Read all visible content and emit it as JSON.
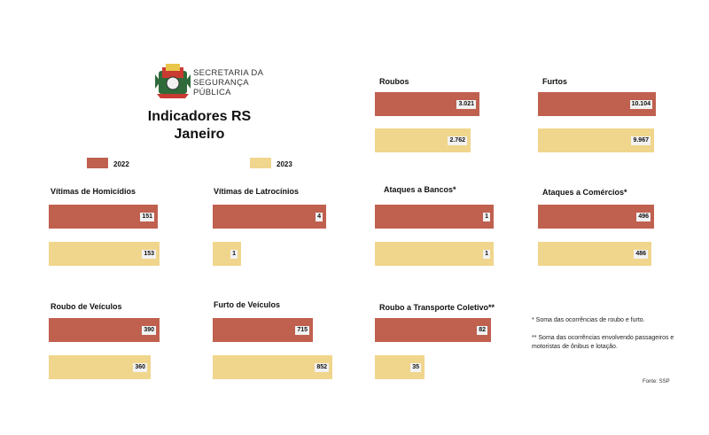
{
  "header": {
    "org_line1": "SECRETARIA DA",
    "org_line2": "SEGURANÇA",
    "org_line3": "PÚBLICA",
    "title_line1": "Indicadores RS",
    "title_line2": "Janeiro"
  },
  "legend": [
    {
      "label": "2022",
      "color": "#c0604f"
    },
    {
      "label": "2023",
      "color": "#f0d58c"
    }
  ],
  "colors": {
    "y2022": "#c0604f",
    "y2023": "#f0d58c"
  },
  "chart_data": [
    {
      "type": "bar",
      "title": "Roubos",
      "categories": [
        "2022",
        "2023"
      ],
      "values": [
        3021,
        2762
      ],
      "labels": [
        "3.021",
        "2.762"
      ]
    },
    {
      "type": "bar",
      "title": "Furtos",
      "categories": [
        "2022",
        "2023"
      ],
      "values": [
        10104,
        9967
      ],
      "labels": [
        "10.104",
        "9.967"
      ]
    },
    {
      "type": "bar",
      "title": "Vítimas de Homicídios",
      "categories": [
        "2022",
        "2023"
      ],
      "values": [
        151,
        153
      ],
      "labels": [
        "151",
        "153"
      ]
    },
    {
      "type": "bar",
      "title": "Vítimas de Latrocínios",
      "categories": [
        "2022",
        "2023"
      ],
      "values": [
        4,
        1
      ],
      "labels": [
        "4",
        "1"
      ]
    },
    {
      "type": "bar",
      "title": "Ataques a Bancos*",
      "categories": [
        "2022",
        "2023"
      ],
      "values": [
        1,
        1
      ],
      "labels": [
        "1",
        "1"
      ]
    },
    {
      "type": "bar",
      "title": "Ataques a Comércios*",
      "categories": [
        "2022",
        "2023"
      ],
      "values": [
        496,
        486
      ],
      "labels": [
        "496",
        "486"
      ]
    },
    {
      "type": "bar",
      "title": "Roubo de Veículos",
      "categories": [
        "2022",
        "2023"
      ],
      "values": [
        390,
        360
      ],
      "labels": [
        "390",
        "360"
      ]
    },
    {
      "type": "bar",
      "title": "Furto de Veículos",
      "categories": [
        "2022",
        "2023"
      ],
      "values": [
        715,
        852
      ],
      "labels": [
        "715",
        "852"
      ]
    },
    {
      "type": "bar",
      "title": "Roubo a Transporte Coletivo**",
      "categories": [
        "2022",
        "2023"
      ],
      "values": [
        82,
        35
      ],
      "labels": [
        "82",
        "35"
      ]
    }
  ],
  "notes": {
    "note1": "* Soma das ocorrências de roubo e furto.",
    "note2_line1": "** Soma das ocorrências envolvendo passageiros e",
    "note2_line2": "motoristas de ônibus e lotação.",
    "source": "Fonte: SSP"
  }
}
